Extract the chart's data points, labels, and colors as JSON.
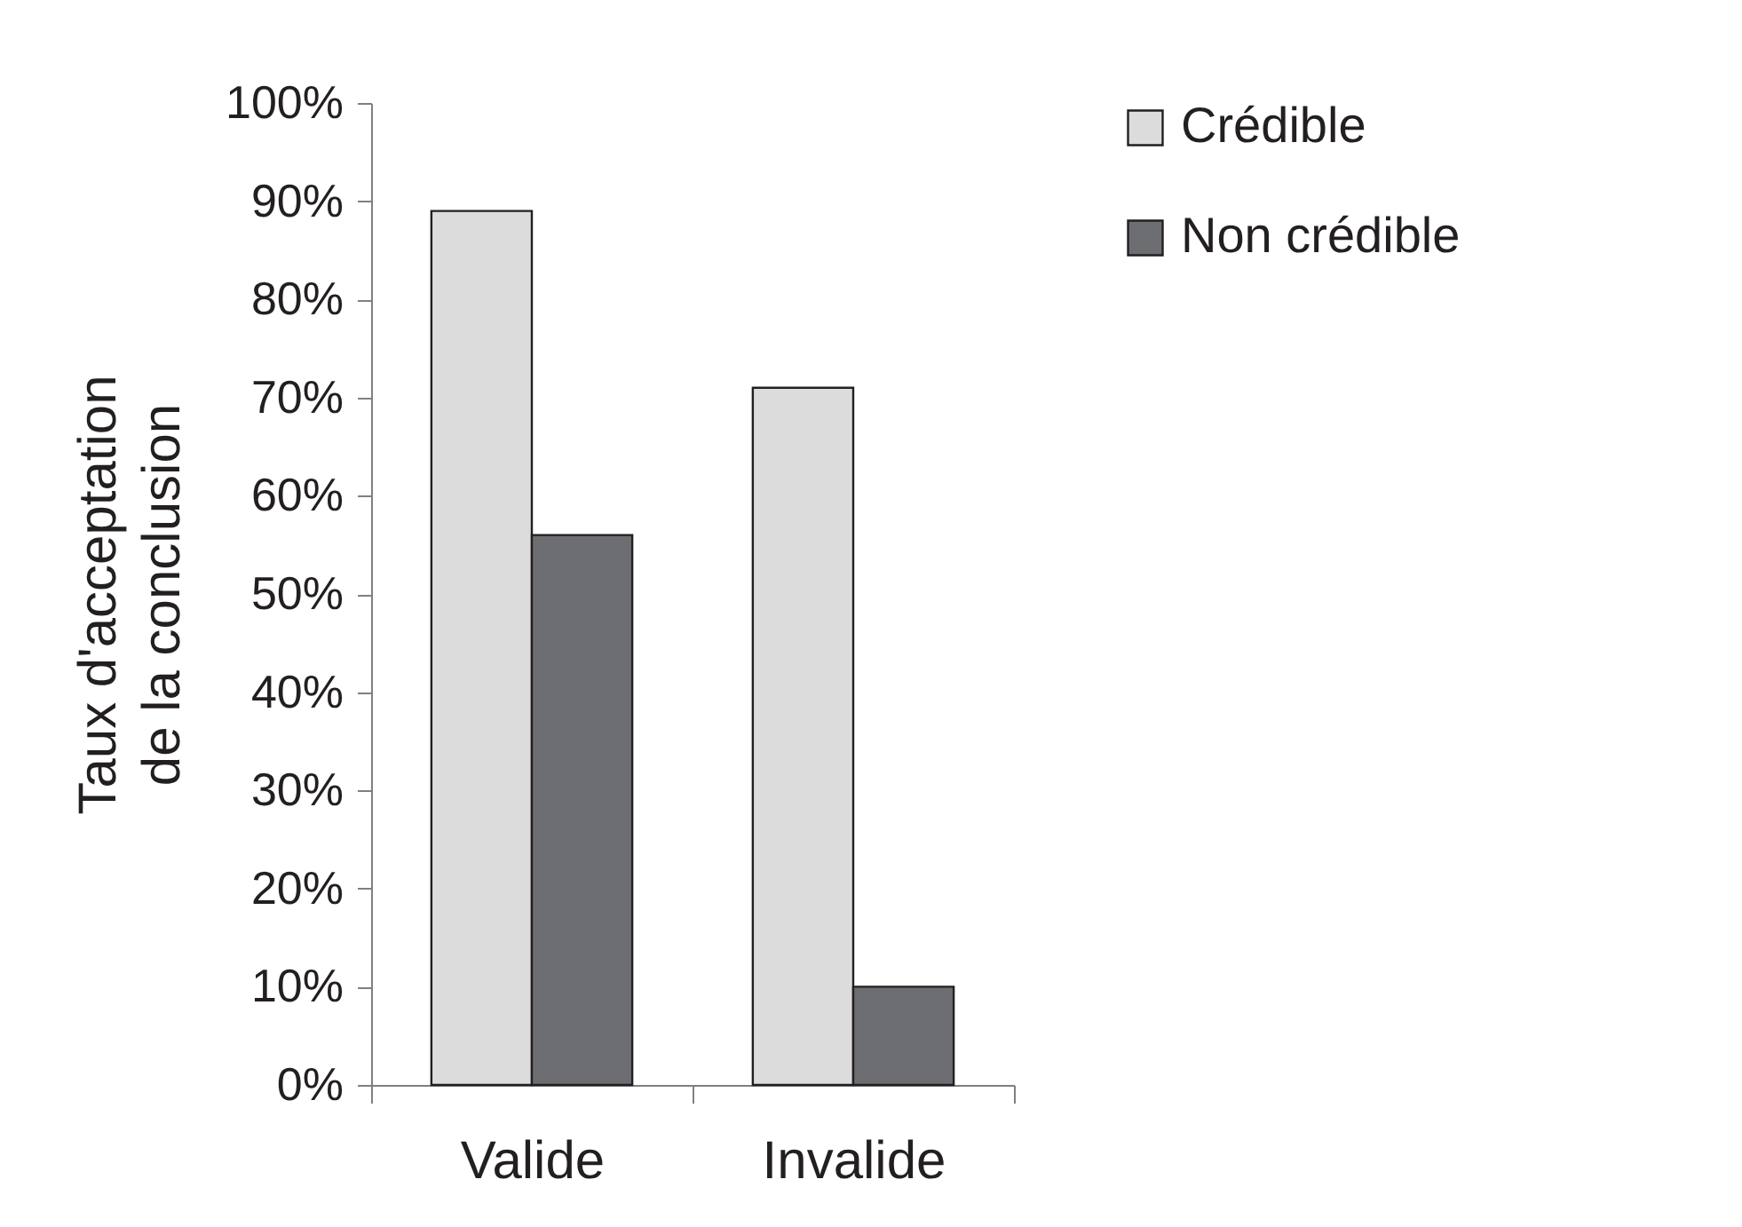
{
  "chart_data": {
    "type": "bar",
    "ylabel": "Taux d'acceptation de la conclusion",
    "categories": [
      "Valide",
      "Invalide"
    ],
    "series": [
      {
        "name": "Crédible",
        "color": "#dcdcdd",
        "values": [
          89,
          71
        ]
      },
      {
        "name": "Non crédible",
        "color": "#6d6e71",
        "values": [
          56,
          10
        ]
      }
    ],
    "ylim": [
      0,
      100
    ],
    "yticks": [
      {
        "value": 0,
        "label": "0%"
      },
      {
        "value": 10,
        "label": "10%"
      },
      {
        "value": 20,
        "label": "20%"
      },
      {
        "value": 30,
        "label": "30%"
      },
      {
        "value": 40,
        "label": "40%"
      },
      {
        "value": 50,
        "label": "50%"
      },
      {
        "value": 60,
        "label": "60%"
      },
      {
        "value": 70,
        "label": "70%"
      },
      {
        "value": 80,
        "label": "80%"
      },
      {
        "value": 90,
        "label": "90%"
      },
      {
        "value": 100,
        "label": "100%"
      }
    ],
    "grid": false,
    "legend": "right"
  }
}
